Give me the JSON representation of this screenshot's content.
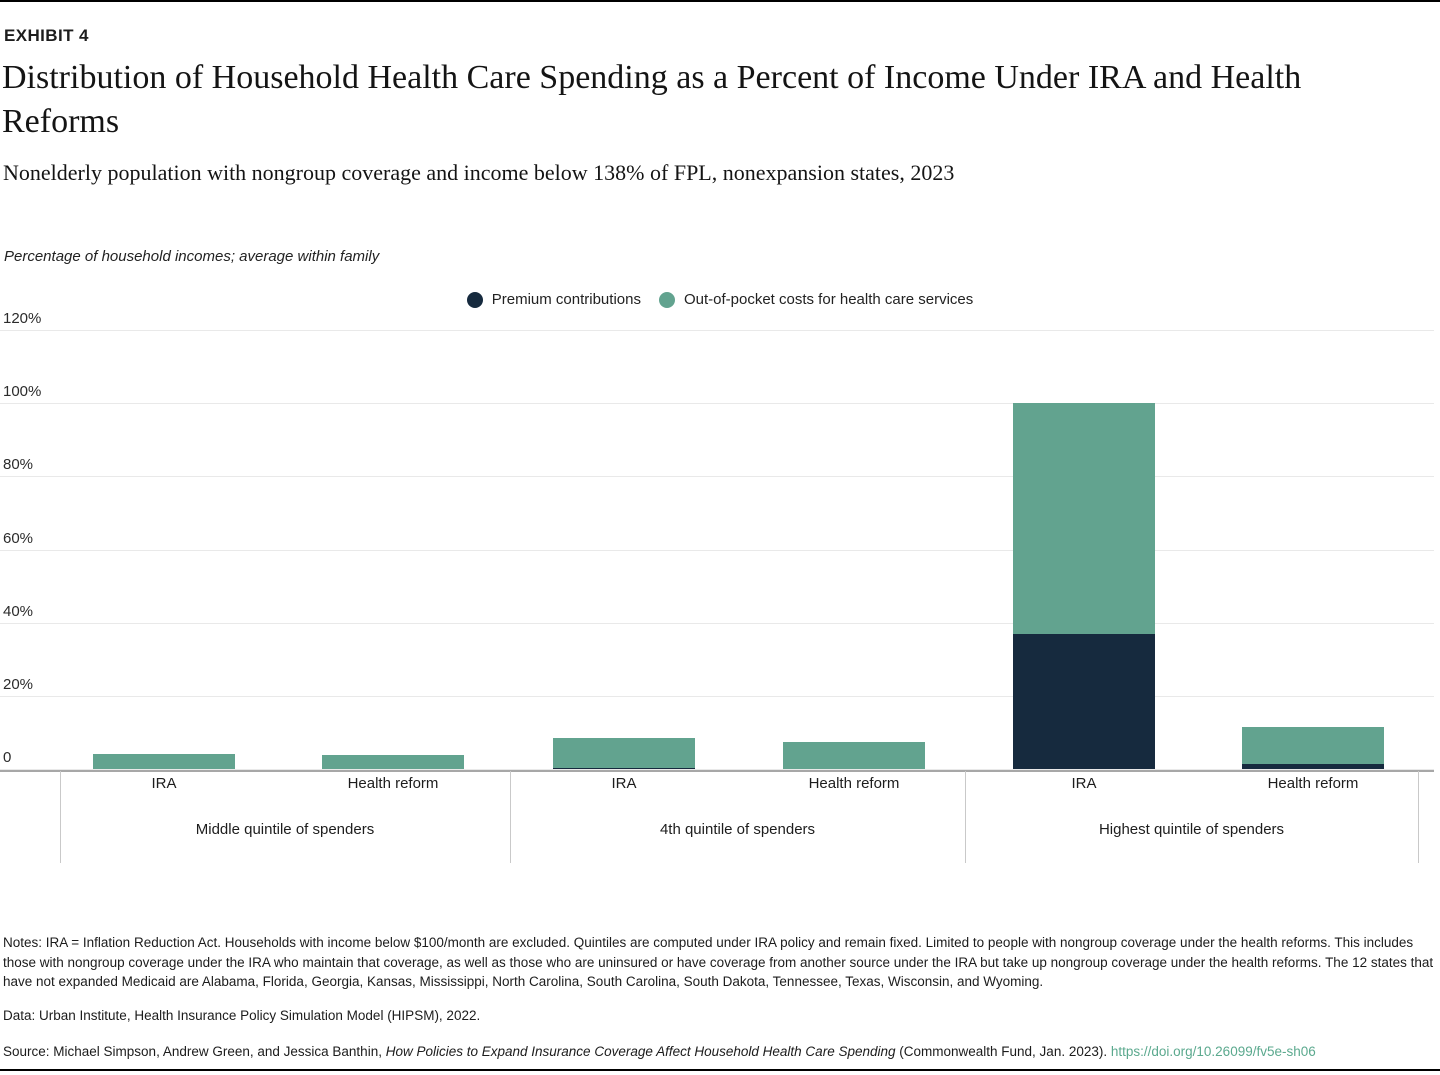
{
  "header": {
    "eyebrow": "EXHIBIT 4",
    "title": "Distribution of Household Health Care Spending as a Percent of Income Under IRA and Health Reforms",
    "subtitle": "Nonelderly population with nongroup coverage and income below 138% of FPL, nonexpansion states, 2023"
  },
  "chart_data": {
    "type": "bar",
    "stacked": true,
    "axis_note": "Percentage of household incomes; average within family",
    "ylim": [
      0,
      120
    ],
    "y_ticks": [
      {
        "value": 120,
        "label": "120%"
      },
      {
        "value": 100,
        "label": "100%"
      },
      {
        "value": 80,
        "label": "80%"
      },
      {
        "value": 60,
        "label": "60%"
      },
      {
        "value": 40,
        "label": "40%"
      },
      {
        "value": 20,
        "label": "20%"
      },
      {
        "value": 0,
        "label": "0"
      }
    ],
    "grid": true,
    "legend_position": "top-center",
    "legend": [
      {
        "name": "Premium contributions",
        "color": "#162a3e"
      },
      {
        "name": "Out-of-pocket costs for health care services",
        "color": "#62a38f"
      }
    ],
    "categories": [
      "IRA",
      "Health reform",
      "IRA",
      "Health reform",
      "IRA",
      "Health reform"
    ],
    "series": [
      {
        "name": "Premium contributions",
        "values": [
          0,
          0,
          0.4,
          0,
          37,
          1.5
        ]
      },
      {
        "name": "Out-of-pocket costs for health care services",
        "values": [
          4.1,
          3.8,
          8.2,
          7.4,
          63,
          10
        ]
      }
    ],
    "groups": [
      {
        "label": "Middle quintile of spenders",
        "bars": [
          {
            "label": "IRA",
            "premium": 0,
            "oop": 4.1
          },
          {
            "label": "Health reform",
            "premium": 0,
            "oop": 3.8
          }
        ]
      },
      {
        "label": "4th quintile of spenders",
        "bars": [
          {
            "label": "IRA",
            "premium": 0.4,
            "oop": 8.2
          },
          {
            "label": "Health reform",
            "premium": 0,
            "oop": 7.4
          }
        ]
      },
      {
        "label": "Highest quintile of spenders",
        "bars": [
          {
            "label": "IRA",
            "premium": 37,
            "oop": 63
          },
          {
            "label": "Health reform",
            "premium": 1.5,
            "oop": 10
          }
        ]
      }
    ]
  },
  "colors": {
    "premium": "#162a3e",
    "oop": "#62a38f",
    "gridline": "#e9e9e9",
    "axis": "#a7a7a7",
    "link": "#5ba98e"
  },
  "footer": {
    "notes": "Notes: IRA = Inflation Reduction Act. Households with income below $100/month are excluded. Quintiles are computed under IRA policy and remain fixed. Limited to people with nongroup coverage under the health reforms. This includes those with nongroup coverage under the IRA who maintain that coverage, as well as those who are uninsured or have coverage from another source under the IRA but take up nongroup coverage under the health reforms. The 12 states that have not expanded Medicaid are Alabama, Florida, Georgia, Kansas, Mississippi, North Carolina, South Carolina, South Dakota, Tennessee, Texas, Wisconsin, and Wyoming.",
    "data_line": "Data: Urban Institute, Health Insurance Policy Simulation Model (HIPSM), 2022.",
    "source_prefix": "Source: Michael Simpson, Andrew Green, and Jessica Banthin, ",
    "source_title": "How Policies to Expand Insurance Coverage Affect Household Health Care Spending",
    "source_suffix": " (Commonwealth Fund, Jan. 2023). ",
    "source_link": "https://doi.org/10.26099/fv5e-sh06"
  }
}
